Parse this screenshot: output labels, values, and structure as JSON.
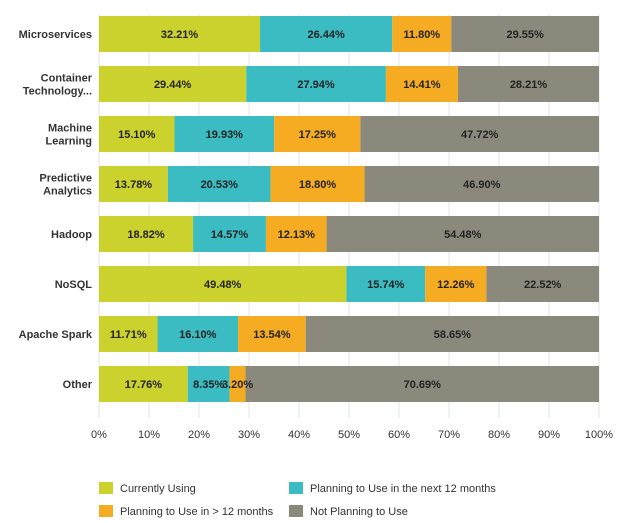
{
  "chart_data": {
    "type": "bar",
    "orientation": "horizontal",
    "stacked": true,
    "categories": [
      [
        "Microservices"
      ],
      [
        "Container",
        "Technology..."
      ],
      [
        "Machine",
        "Learning"
      ],
      [
        "Predictive",
        "Analytics"
      ],
      [
        "Hadoop"
      ],
      [
        "NoSQL"
      ],
      [
        "Apache Spark"
      ],
      [
        "Other"
      ]
    ],
    "series": [
      {
        "name": "Currently Using",
        "color": "#cbd22e",
        "values": [
          32.21,
          29.44,
          15.1,
          13.78,
          18.82,
          49.48,
          11.71,
          17.76
        ],
        "labels": [
          "32.21%",
          "29.44%",
          "15.10%",
          "13.78%",
          "18.82%",
          "49.48%",
          "11.71%",
          "17.76%"
        ]
      },
      {
        "name": "Planning to Use in the next 12 months",
        "color": "#3bbcc2",
        "values": [
          26.44,
          27.94,
          19.93,
          20.53,
          14.57,
          15.74,
          16.1,
          8.35
        ],
        "labels": [
          "26.44%",
          "27.94%",
          "19.93%",
          "20.53%",
          "14.57%",
          "15.74%",
          "16.10%",
          "8.35%"
        ]
      },
      {
        "name": "Planning to Use in > 12 months",
        "color": "#f5ac22",
        "values": [
          11.8,
          14.41,
          17.25,
          18.8,
          12.13,
          12.26,
          13.54,
          3.2
        ],
        "labels": [
          "11.80%",
          "14.41%",
          "17.25%",
          "18.80%",
          "12.13%",
          "12.26%",
          "13.54%",
          "3.20%"
        ]
      },
      {
        "name": "Not Planning to Use",
        "color": "#8b897c",
        "values": [
          29.55,
          28.21,
          47.72,
          46.9,
          54.48,
          22.52,
          58.65,
          70.69
        ],
        "labels": [
          "29.55%",
          "28.21%",
          "47.72%",
          "46.90%",
          "54.48%",
          "22.52%",
          "58.65%",
          "70.69%"
        ]
      }
    ],
    "xlim": [
      0,
      100
    ],
    "xticks": [
      "0%",
      "10%",
      "20%",
      "30%",
      "40%",
      "50%",
      "60%",
      "70%",
      "80%",
      "90%",
      "100%"
    ],
    "grid": true,
    "legend_position": "bottom",
    "title": "",
    "xlabel": "",
    "ylabel": ""
  }
}
